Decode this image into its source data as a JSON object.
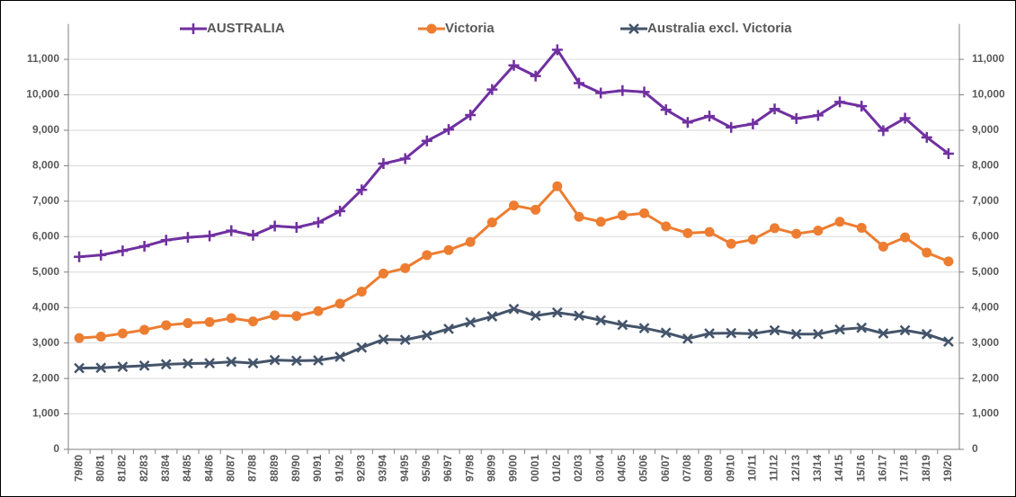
{
  "chart_data": {
    "type": "line",
    "categories": [
      "79/80",
      "80/81",
      "81/82",
      "82/83",
      "83/84",
      "84/85",
      "84/86",
      "80/87",
      "87/88",
      "88/89",
      "89/90",
      "90/91",
      "91/92",
      "92/93",
      "93/94",
      "94/95",
      "95/96",
      "96/97",
      "97/98",
      "98/99",
      "99/00",
      "00/01",
      "01/02",
      "02/03",
      "03/04",
      "04/05",
      "05/06",
      "06/07",
      "07/08",
      "08/09",
      "09/10",
      "10/11",
      "11/12",
      "12/13",
      "13/14",
      "14/15",
      "15/16",
      "16/17",
      "17/18",
      "18/19",
      "19/20"
    ],
    "series": [
      {
        "name": "AUSTRALIA",
        "color": "#7030a0",
        "marker": "plus",
        "values": [
          5430,
          5480,
          5600,
          5730,
          5900,
          5980,
          6020,
          6170,
          6040,
          6300,
          6260,
          6400,
          6720,
          7320,
          8060,
          8200,
          8700,
          9020,
          9430,
          10150,
          10830,
          10530,
          11270,
          10330,
          10050,
          10120,
          10080,
          9580,
          9220,
          9400,
          9080,
          9180,
          9600,
          9330,
          9420,
          9800,
          9680,
          8990,
          9340,
          8800,
          8340
        ]
      },
      {
        "name": "Victoria",
        "color": "#ed7d31",
        "marker": "circle",
        "values": [
          3140,
          3180,
          3270,
          3370,
          3500,
          3560,
          3590,
          3700,
          3610,
          3780,
          3760,
          3900,
          4110,
          4450,
          4960,
          5110,
          5480,
          5620,
          5850,
          6400,
          6880,
          6760,
          7420,
          6560,
          6420,
          6600,
          6660,
          6290,
          6100,
          6130,
          5800,
          5920,
          6240,
          6080,
          6170,
          6420,
          6250,
          5720,
          5980,
          5550,
          5300
        ]
      },
      {
        "name": "Australia excl. Victoria",
        "color": "#44546a",
        "marker": "cross",
        "values": [
          2290,
          2300,
          2330,
          2360,
          2400,
          2420,
          2430,
          2470,
          2430,
          2520,
          2500,
          2510,
          2610,
          2870,
          3100,
          3090,
          3220,
          3400,
          3580,
          3750,
          3960,
          3770,
          3860,
          3770,
          3640,
          3510,
          3420,
          3290,
          3120,
          3270,
          3280,
          3260,
          3360,
          3250,
          3250,
          3380,
          3430,
          3270,
          3360,
          3250,
          3040
        ]
      }
    ],
    "ylim": [
      0,
      12000
    ],
    "yticks": [
      0,
      {
        "value": 1000,
        "label": "1,000"
      },
      {
        "value": 2000,
        "label": "2,000"
      },
      {
        "value": 3000,
        "label": "3,000"
      },
      {
        "value": 4000,
        "label": "4,000"
      },
      {
        "value": 5000,
        "label": "5,000"
      },
      {
        "value": 6000,
        "label": "6,000"
      },
      {
        "value": 7000,
        "label": "7,000"
      },
      {
        "value": 8000,
        "label": "8,000"
      },
      {
        "value": 9000,
        "label": "9,000"
      },
      {
        "value": 10000,
        "label": "10,000"
      },
      {
        "value": 11000,
        "label": "11,000"
      }
    ],
    "grid": true,
    "legend": "top",
    "mirror_y_axis": true
  }
}
